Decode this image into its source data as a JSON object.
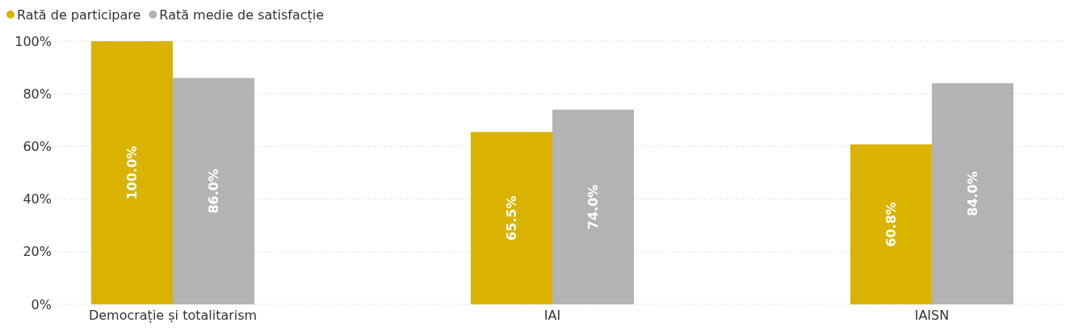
{
  "chart_data": {
    "type": "bar",
    "categories": [
      "Democrație și totalitarism",
      "IAI",
      "IAISN"
    ],
    "series": [
      {
        "name": "Rată de participare",
        "color": "#d9b300",
        "values": [
          100,
          65.5,
          60.8
        ],
        "value_labels": [
          "100.0%",
          "65.5%",
          "60.8%"
        ]
      },
      {
        "name": "Rată medie de satisfacție",
        "color": "#b3b3b3",
        "values": [
          86,
          74,
          84
        ],
        "value_labels": [
          "86.0%",
          "74.0%",
          "84.0%"
        ]
      }
    ],
    "ylim": [
      0,
      100
    ],
    "yticks": [
      {
        "value": 0,
        "label": "0%"
      },
      {
        "value": 20,
        "label": "20%"
      },
      {
        "value": 40,
        "label": "40%"
      },
      {
        "value": 60,
        "label": "60%"
      },
      {
        "value": 80,
        "label": "80%"
      },
      {
        "value": 100,
        "label": "100%"
      }
    ],
    "grid": "y",
    "legend": "top left"
  }
}
